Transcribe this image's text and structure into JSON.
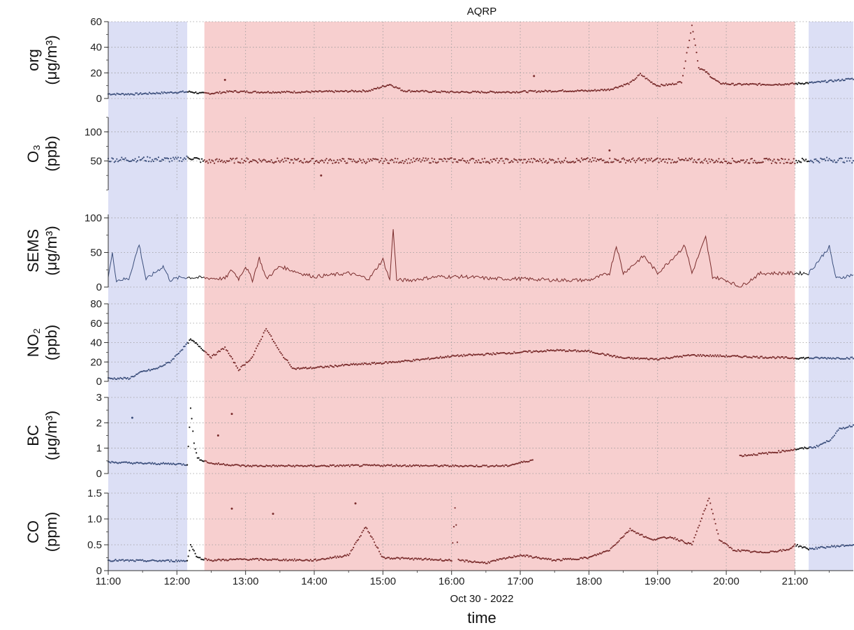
{
  "chart_data": {
    "type": "line",
    "title": "AQRP",
    "xlabel": "time",
    "xdate_label": "Oct 30 - 2022",
    "x_ticks": [
      "11:00",
      "12:00",
      "13:00",
      "14:00",
      "15:00",
      "16:00",
      "17:00",
      "18:00",
      "19:00",
      "20:00",
      "21:00"
    ],
    "xlim_hours": [
      11.0,
      21.85
    ],
    "grid": true,
    "shaded_regions": [
      {
        "start": 11.0,
        "end": 12.15,
        "color": "#dcdff5"
      },
      {
        "start": 12.4,
        "end": 21.0,
        "color": "#f7cfcf"
      },
      {
        "start": 21.2,
        "end": 21.85,
        "color": "#dcdff5"
      }
    ],
    "panels": [
      {
        "id": "org",
        "ylabel_line1": "org",
        "ylabel_line2": "(μg/m³)",
        "ylim": [
          0,
          60
        ],
        "yticks": [
          0,
          20,
          40,
          60
        ],
        "style": "points",
        "points": [
          [
            11.0,
            3.5
          ],
          [
            11.2,
            3.4
          ],
          [
            11.4,
            3.5
          ],
          [
            12.05,
            5
          ],
          [
            12.2,
            5.2
          ],
          [
            12.35,
            4
          ],
          [
            12.5,
            4
          ],
          [
            12.8,
            5.5
          ],
          [
            13.2,
            5
          ],
          [
            13.6,
            5
          ],
          [
            14.0,
            5.2
          ],
          [
            14.4,
            5.5
          ],
          [
            14.8,
            6
          ],
          [
            15.1,
            11
          ],
          [
            15.3,
            6
          ],
          [
            15.6,
            5.5
          ],
          [
            16.0,
            5
          ],
          [
            16.4,
            5
          ],
          [
            16.8,
            5
          ],
          [
            17.2,
            5.5
          ],
          [
            17.6,
            6
          ],
          [
            18.0,
            6
          ],
          [
            18.3,
            7
          ],
          [
            18.6,
            12
          ],
          [
            18.75,
            19
          ],
          [
            18.9,
            13
          ],
          [
            19.0,
            10
          ],
          [
            19.2,
            11
          ],
          [
            19.35,
            13
          ],
          [
            19.5,
            57
          ],
          [
            19.55,
            42
          ],
          [
            19.6,
            24
          ],
          [
            19.7,
            21
          ],
          [
            19.8,
            16
          ],
          [
            19.9,
            12
          ],
          [
            20.1,
            11
          ],
          [
            20.4,
            11
          ],
          [
            20.7,
            11
          ],
          [
            21.0,
            11.5
          ],
          [
            21.3,
            12.5
          ],
          [
            21.6,
            14
          ],
          [
            21.85,
            15.5
          ]
        ],
        "outliers": [
          [
            12.7,
            14.5
          ],
          [
            17.2,
            17.5
          ]
        ]
      },
      {
        "id": "o3",
        "ylabel_line1": "O₃",
        "ylabel_line2": "(ppb)",
        "ylim": [
          0,
          125
        ],
        "yticks": [
          50,
          100
        ],
        "style": "points",
        "points": [
          [
            11.0,
            52
          ],
          [
            11.5,
            53
          ],
          [
            12.0,
            52
          ],
          [
            12.2,
            56
          ],
          [
            12.4,
            49
          ],
          [
            13.0,
            51
          ],
          [
            14.0,
            50
          ],
          [
            15.0,
            50
          ],
          [
            16.0,
            51
          ],
          [
            17.0,
            50
          ],
          [
            18.0,
            51
          ],
          [
            19.0,
            51
          ],
          [
            20.0,
            50
          ],
          [
            21.0,
            50
          ],
          [
            21.5,
            52
          ],
          [
            21.85,
            51
          ]
        ],
        "outliers": [
          [
            14.1,
            25
          ],
          [
            18.3,
            68
          ]
        ]
      },
      {
        "id": "sems",
        "ylabel_line1": "SEMS",
        "ylabel_line2": "(μg/m³)",
        "ylim": [
          0,
          105
        ],
        "yticks": [
          0,
          50,
          100
        ],
        "style": "line",
        "points": [
          [
            11.0,
            15
          ],
          [
            11.06,
            48
          ],
          [
            11.12,
            10
          ],
          [
            11.3,
            12
          ],
          [
            11.45,
            62
          ],
          [
            11.55,
            11
          ],
          [
            11.8,
            30
          ],
          [
            11.9,
            10
          ],
          [
            12.05,
            14
          ],
          [
            12.2,
            14
          ],
          [
            12.7,
            12
          ],
          [
            12.8,
            25
          ],
          [
            12.9,
            12
          ],
          [
            13.0,
            30
          ],
          [
            13.1,
            10
          ],
          [
            13.2,
            42
          ],
          [
            13.3,
            12
          ],
          [
            13.5,
            30
          ],
          [
            13.8,
            20
          ],
          [
            14.0,
            15
          ],
          [
            14.5,
            20
          ],
          [
            14.8,
            12
          ],
          [
            15.0,
            40
          ],
          [
            15.1,
            10
          ],
          [
            15.15,
            85
          ],
          [
            15.2,
            10
          ],
          [
            15.4,
            10
          ],
          [
            15.8,
            15
          ],
          [
            16.2,
            15
          ],
          [
            16.6,
            12
          ],
          [
            17.0,
            12
          ],
          [
            17.5,
            10
          ],
          [
            18.0,
            10
          ],
          [
            18.3,
            20
          ],
          [
            18.4,
            60
          ],
          [
            18.5,
            20
          ],
          [
            18.8,
            45
          ],
          [
            19.0,
            20
          ],
          [
            19.4,
            60
          ],
          [
            19.5,
            20
          ],
          [
            19.7,
            72
          ],
          [
            19.8,
            15
          ],
          [
            20.0,
            10
          ],
          [
            20.2,
            0
          ],
          [
            20.5,
            20
          ],
          [
            20.9,
            20
          ],
          [
            21.2,
            20
          ],
          [
            21.5,
            58
          ],
          [
            21.6,
            12
          ],
          [
            21.85,
            18
          ]
        ]
      },
      {
        "id": "no2",
        "ylabel_line1": "NO₂",
        "ylabel_line2": "(ppb)",
        "ylim": [
          0,
          80
        ],
        "yticks": [
          0,
          20,
          40,
          60,
          80
        ],
        "style": "points",
        "points": [
          [
            11.0,
            3
          ],
          [
            11.3,
            3
          ],
          [
            11.5,
            10
          ],
          [
            11.7,
            13
          ],
          [
            11.9,
            20
          ],
          [
            12.1,
            35
          ],
          [
            12.2,
            43
          ],
          [
            12.3,
            38
          ],
          [
            12.5,
            25
          ],
          [
            12.7,
            35
          ],
          [
            12.9,
            12
          ],
          [
            13.1,
            25
          ],
          [
            13.3,
            55
          ],
          [
            13.5,
            30
          ],
          [
            13.7,
            13
          ],
          [
            14.0,
            14
          ],
          [
            14.5,
            17
          ],
          [
            15.0,
            19
          ],
          [
            15.5,
            22
          ],
          [
            16.0,
            26
          ],
          [
            16.5,
            28
          ],
          [
            17.0,
            30
          ],
          [
            17.5,
            32
          ],
          [
            18.0,
            31
          ],
          [
            18.5,
            24
          ],
          [
            19.0,
            23
          ],
          [
            19.5,
            27
          ],
          [
            20.0,
            26
          ],
          [
            20.5,
            25
          ],
          [
            21.0,
            24
          ],
          [
            21.5,
            24
          ],
          [
            21.85,
            24
          ]
        ]
      },
      {
        "id": "bc",
        "ylabel_line1": "BC",
        "ylabel_line2": "(μg/m³)",
        "ylim": [
          0,
          3
        ],
        "yticks": [
          0,
          1,
          2,
          3
        ],
        "style": "points",
        "points": [
          [
            11.0,
            0.45
          ],
          [
            11.5,
            0.4
          ],
          [
            12.0,
            0.38
          ],
          [
            12.15,
            0.35
          ],
          [
            12.2,
            2.6
          ],
          [
            12.25,
            1.2
          ],
          [
            12.3,
            0.6
          ],
          [
            12.5,
            0.4
          ],
          [
            13.0,
            0.3
          ],
          [
            14.0,
            0.3
          ],
          [
            15.0,
            0.32
          ],
          [
            16.0,
            0.3
          ],
          [
            16.8,
            0.3
          ],
          [
            17.2,
            0.55
          ],
          [
            20.2,
            0.7
          ],
          [
            20.6,
            0.8
          ],
          [
            21.0,
            0.95
          ],
          [
            21.3,
            1.05
          ],
          [
            21.5,
            1.3
          ],
          [
            21.65,
            1.75
          ],
          [
            21.85,
            1.9
          ]
        ],
        "outliers": [
          [
            11.35,
            2.2
          ],
          [
            12.8,
            2.35
          ],
          [
            12.6,
            1.5
          ]
        ]
      },
      {
        "id": "co",
        "ylabel_line1": "CO",
        "ylabel_line2": "(ppm)",
        "ylim": [
          0,
          1.5
        ],
        "yticks": [
          0,
          0.5,
          1.0,
          1.5
        ],
        "ytick_labels": [
          "0",
          "0.5",
          "1.0",
          "1.5"
        ],
        "style": "points",
        "points": [
          [
            11.0,
            0.2
          ],
          [
            11.5,
            0.19
          ],
          [
            12.15,
            0.19
          ],
          [
            12.2,
            0.5
          ],
          [
            12.3,
            0.25
          ],
          [
            12.5,
            0.2
          ],
          [
            13.0,
            0.22
          ],
          [
            14.0,
            0.2
          ],
          [
            14.5,
            0.3
          ],
          [
            14.75,
            0.85
          ],
          [
            15.0,
            0.25
          ],
          [
            16.0,
            0.2
          ],
          [
            16.05,
            1.2
          ],
          [
            16.1,
            0.2
          ],
          [
            16.5,
            0.15
          ],
          [
            17.0,
            0.3
          ],
          [
            17.5,
            0.2
          ],
          [
            18.0,
            0.25
          ],
          [
            18.3,
            0.4
          ],
          [
            18.6,
            0.8
          ],
          [
            18.9,
            0.6
          ],
          [
            19.2,
            0.65
          ],
          [
            19.5,
            0.5
          ],
          [
            19.75,
            1.4
          ],
          [
            19.9,
            0.6
          ],
          [
            20.1,
            0.4
          ],
          [
            20.5,
            0.35
          ],
          [
            20.9,
            0.4
          ],
          [
            21.0,
            0.5
          ],
          [
            21.2,
            0.42
          ],
          [
            21.5,
            0.46
          ],
          [
            21.85,
            0.5
          ]
        ],
        "outliers": [
          [
            12.8,
            1.2
          ],
          [
            13.4,
            1.1
          ],
          [
            14.6,
            1.3
          ]
        ]
      }
    ],
    "series_colors": {
      "blue_region": "#3c4f7c",
      "red_region": "#7a2d2d",
      "other": "#111111"
    }
  }
}
